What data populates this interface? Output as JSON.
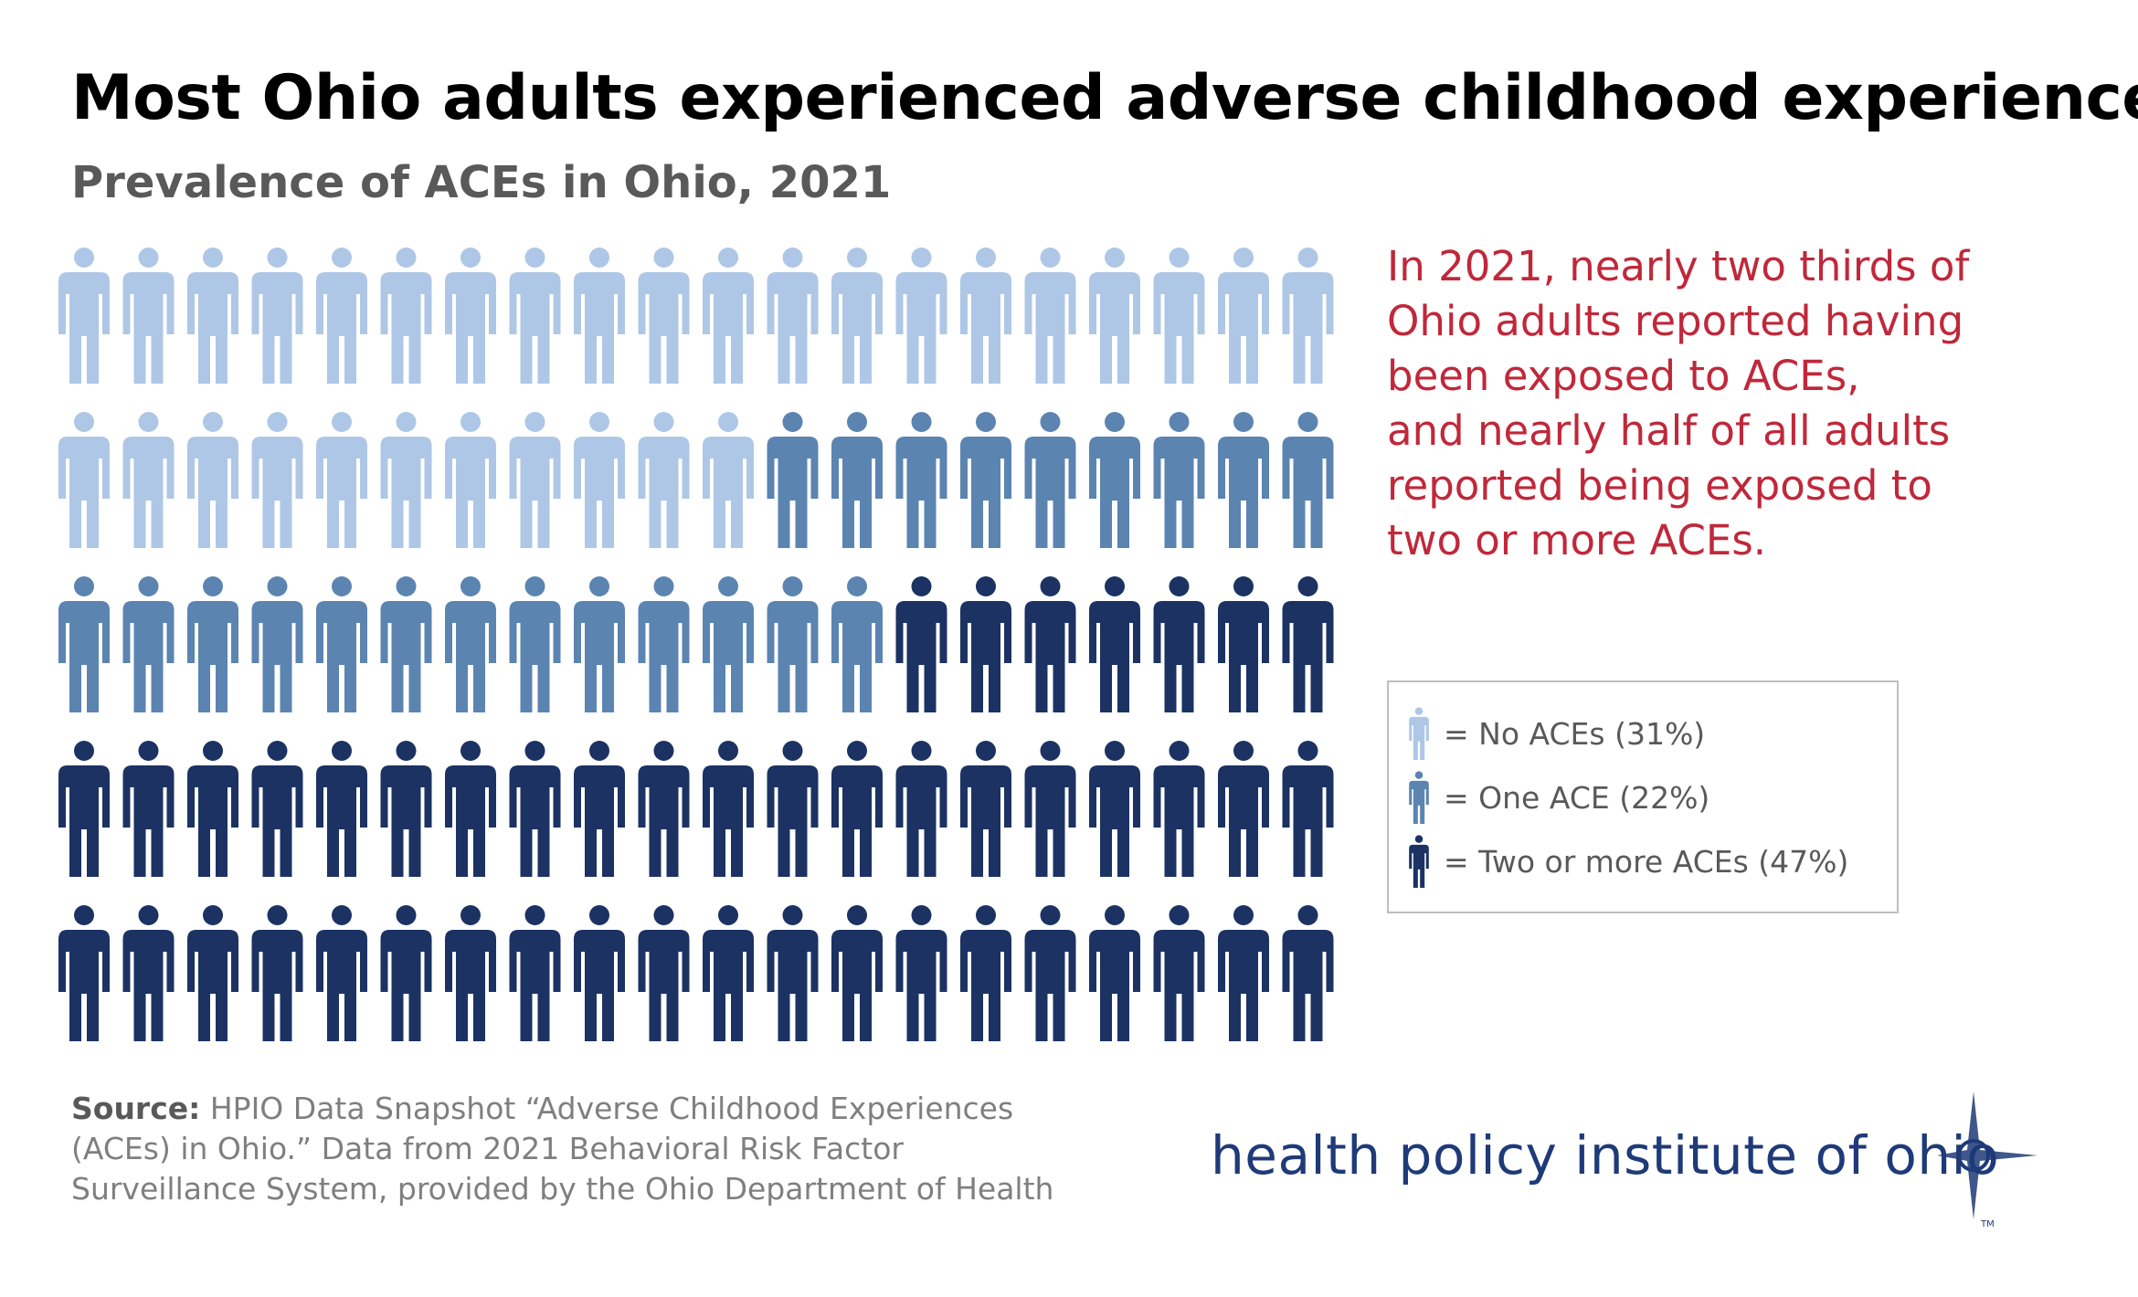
{
  "title": "Most Ohio adults experienced adverse childhood experiences",
  "subtitle": "Prevalence of ACEs in Ohio, 2021",
  "callout": [
    "In 2021, nearly two thirds of",
    "Ohio adults reported having",
    "been exposed to ACEs,",
    "and nearly half of all adults",
    "reported being exposed to",
    "two or more ACEs."
  ],
  "legend": [
    {
      "label": "= No ACEs (31%)",
      "color": "#aec7e6"
    },
    {
      "label": "= One ACE (22%)",
      "color": "#5b84b1"
    },
    {
      "label": "= Two or more ACEs (47%)",
      "color": "#1b3263"
    }
  ],
  "source": {
    "label": "Source:",
    "lines": [
      "HPIO Data Snapshot “Adverse Childhood Experiences",
      "(ACEs) in Ohio.” Data from 2021 Behavioral Risk Factor",
      "Surveillance System, provided by the Ohio Department  of Health"
    ]
  },
  "logo": {
    "text": "health policy institute of ohio",
    "tm": "TM",
    "icon": "compass-star-icon"
  },
  "chart_data": {
    "type": "pictogram",
    "total_icons": 100,
    "icons_per_row": 20,
    "rows": 5,
    "categories": [
      "No ACEs",
      "One ACE",
      "Two or more ACEs"
    ],
    "values": [
      31,
      22,
      47
    ],
    "unit": "%",
    "colors": [
      "#aec7e6",
      "#5b84b1",
      "#1b3263"
    ],
    "icon": "person-icon",
    "title": "Most Ohio adults experienced adverse childhood experiences",
    "subtitle": "Prevalence of ACEs in Ohio, 2021"
  }
}
